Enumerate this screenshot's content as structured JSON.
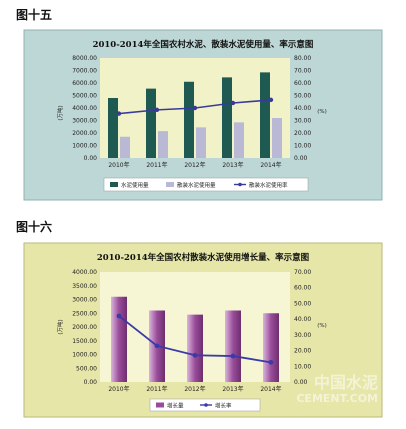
{
  "figures": [
    {
      "label": "图十五"
    },
    {
      "label": "图十六"
    }
  ],
  "watermark": {
    "line1": "中国水泥",
    "line2": "CEMENT.COM"
  },
  "colors": {
    "frame_bg_1": "#bcd7d5",
    "plot_bg_1": "#f2f2c8",
    "bar_dark": "#1f5a52",
    "bar_light": "#b9b9d6",
    "line_1": "#3a3a9a",
    "frame_bg_2": "#e6e6a8",
    "plot_bg_2": "#f6f6d4",
    "bar_purple": "#9a4c9a",
    "line_2": "#3a3aa8"
  },
  "chart_data": [
    {
      "type": "bar",
      "title": "2010-2014年全国农村水泥、散装水泥使用量、率示意图",
      "categories": [
        "2010年",
        "2011年",
        "2012年",
        "2013年",
        "2014年"
      ],
      "series": [
        {
          "name": "水泥使用量",
          "type": "bar",
          "values": [
            4800,
            5550,
            6100,
            6450,
            6850
          ]
        },
        {
          "name": "散装水泥使用量",
          "type": "bar",
          "values": [
            1700,
            2150,
            2450,
            2850,
            3200
          ]
        },
        {
          "name": "散装水泥使用率",
          "type": "line",
          "axis": "right",
          "values": [
            35.5,
            38.5,
            40.0,
            44.0,
            46.5
          ]
        }
      ],
      "y_left": {
        "unit": "(万吨)",
        "ticks": [
          "0.00",
          "1000.00",
          "2000.00",
          "3000.00",
          "4000.00",
          "5000.00",
          "6000.00",
          "7000.00",
          "8000.00"
        ],
        "ylim": [
          0,
          8000
        ]
      },
      "y_right": {
        "unit": "(%)",
        "ticks": [
          "0.00",
          "10.00",
          "20.00",
          "30.00",
          "40.00",
          "50.00",
          "60.00",
          "70.00",
          "80.00"
        ],
        "ylim": [
          0,
          80
        ]
      },
      "legend_position": "bottom",
      "grid": false
    },
    {
      "type": "bar",
      "title": "2010-2014年全国农村散装水泥使用增长量、率示意图",
      "categories": [
        "2010年",
        "2011年",
        "2012年",
        "2013年",
        "2014年"
      ],
      "series": [
        {
          "name": "增长量",
          "type": "bar",
          "values": [
            3100,
            2600,
            2450,
            2600,
            2500
          ]
        },
        {
          "name": "增长率",
          "type": "line",
          "axis": "right",
          "values": [
            42.0,
            23.0,
            17.0,
            16.5,
            12.5
          ]
        }
      ],
      "y_left": {
        "unit": "(万吨)",
        "ticks": [
          "0.00",
          "500.00",
          "1000.00",
          "1500.00",
          "2000.00",
          "2500.00",
          "3000.00",
          "3500.00",
          "4000.00"
        ],
        "ylim": [
          0,
          4000
        ]
      },
      "y_right": {
        "unit": "(%)",
        "ticks": [
          "0.00",
          "10.00",
          "20.00",
          "30.00",
          "40.00",
          "50.00",
          "60.00",
          "70.00"
        ],
        "ylim": [
          0,
          70
        ]
      },
      "legend_position": "bottom",
      "grid": false
    }
  ]
}
